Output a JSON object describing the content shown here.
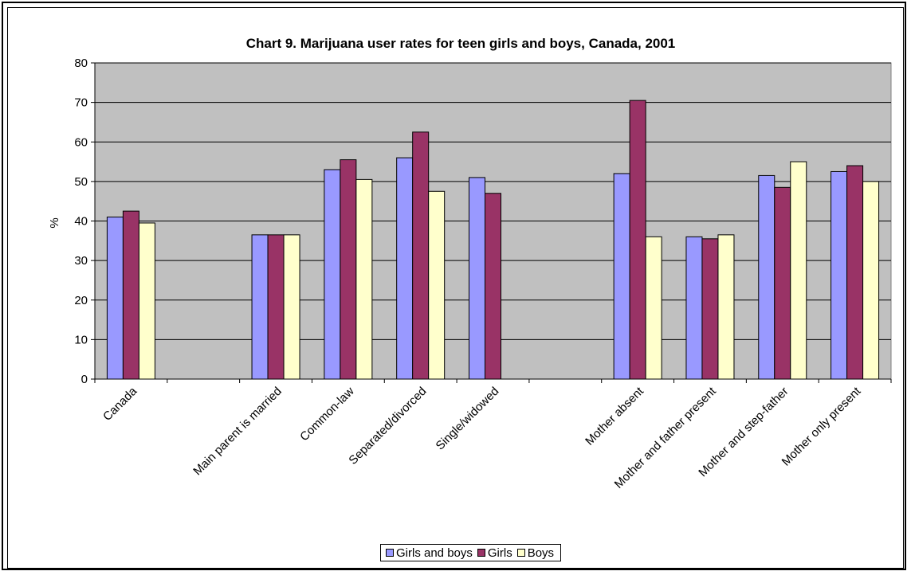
{
  "chart_data": {
    "type": "bar",
    "title": "Chart 9. Marijuana user rates for teen girls and boys, Canada, 2001",
    "xlabel": "",
    "ylabel": "%",
    "ylim": [
      0,
      80
    ],
    "yticks": [
      "0",
      "10",
      "20",
      "30",
      "40",
      "50",
      "60",
      "70",
      "80"
    ],
    "grid": true,
    "legend": "bottom",
    "categories": [
      "Canada",
      "",
      "Main parent is married",
      "Common-law",
      "Separated/divorced",
      "Single/widowed",
      "",
      "Mother absent",
      "Mother and father present",
      "Mother and step-father",
      "Mother only present"
    ],
    "series": [
      {
        "name": "Girls and boys",
        "color": "#9999ff",
        "values": [
          41,
          null,
          36.5,
          53,
          56,
          51,
          null,
          52,
          36,
          51.5,
          52.5
        ]
      },
      {
        "name": "Girls",
        "color": "#993366",
        "values": [
          42.5,
          null,
          36.5,
          55.5,
          62.5,
          47,
          null,
          70.5,
          35.5,
          48.5,
          54
        ]
      },
      {
        "name": "Boys",
        "color": "#ffffcc",
        "values": [
          39.5,
          null,
          36.5,
          50.5,
          47.5,
          null,
          null,
          36,
          36.5,
          55,
          50
        ]
      }
    ],
    "plot_background": "#c0c0c0"
  }
}
